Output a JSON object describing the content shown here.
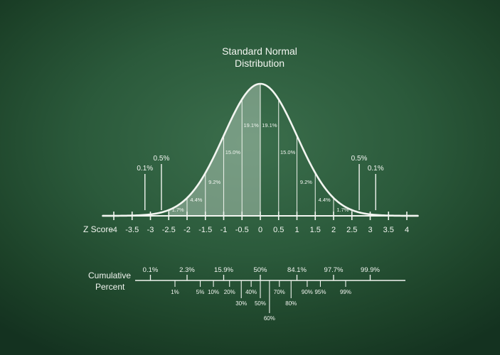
{
  "colors": {
    "background": "#2b5a3b",
    "chalk": "#f2f5f0",
    "shade_dark": "#7f9f89",
    "shade_light": "#a9c2b0"
  },
  "chart_data": {
    "type": "area",
    "title": "Standard Normal Distribution",
    "title_lines": [
      "Standard Normal",
      "Distribution"
    ],
    "xlabel": "Z Score",
    "xlim": [
      -4,
      4
    ],
    "x_ticks": [
      "-4",
      "-3.5",
      "-3",
      "-2.5",
      "-2",
      "-1.5",
      "-1",
      "-0.5",
      "0",
      "0.5",
      "1",
      "1.5",
      "2",
      "2.5",
      "3",
      "3.5",
      "4"
    ],
    "x_tick_values": [
      -4,
      -3.5,
      -3,
      -2.5,
      -2,
      -1.5,
      -1,
      -0.5,
      0,
      0.5,
      1,
      1.5,
      2,
      2.5,
      3,
      3.5,
      4
    ],
    "curve": "standard normal density",
    "segments": [
      {
        "from": -2.5,
        "to": -2,
        "label": "1.7%"
      },
      {
        "from": -2,
        "to": -1.5,
        "label": "4.4%"
      },
      {
        "from": -1.5,
        "to": -1,
        "label": "9.2%"
      },
      {
        "from": -1,
        "to": -0.5,
        "label": "15.0%"
      },
      {
        "from": -0.5,
        "to": 0,
        "label": "19.1%"
      },
      {
        "from": 0,
        "to": 0.5,
        "label": "19.1%"
      },
      {
        "from": 0.5,
        "to": 1,
        "label": "15.0%"
      },
      {
        "from": 1,
        "to": 1.5,
        "label": "9.2%"
      },
      {
        "from": 1.5,
        "to": 2,
        "label": "4.4%"
      },
      {
        "from": 2,
        "to": 2.5,
        "label": "1.7%"
      }
    ],
    "tail_labels": [
      {
        "x": -3.15,
        "label": "0.1%"
      },
      {
        "x": -2.7,
        "label": "0.5%"
      },
      {
        "x": 2.7,
        "label": "0.5%"
      },
      {
        "x": 3.15,
        "label": "0.1%"
      }
    ],
    "cumulative": {
      "label_lines": [
        "Cumulative",
        "Percent"
      ],
      "upper": [
        {
          "z": -3,
          "label": "0.1%"
        },
        {
          "z": -2,
          "label": "2.3%"
        },
        {
          "z": -1,
          "label": "15.9%"
        },
        {
          "z": 0,
          "label": "50%"
        },
        {
          "z": 1,
          "label": "84.1%"
        },
        {
          "z": 2,
          "label": "97.7%"
        },
        {
          "z": 3,
          "label": "99.9%"
        }
      ],
      "lower": [
        {
          "z": -2.33,
          "label": "1%",
          "row": 0
        },
        {
          "z": -1.64,
          "label": "5%",
          "row": 0
        },
        {
          "z": -1.28,
          "label": "10%",
          "row": 0
        },
        {
          "z": -0.84,
          "label": "20%",
          "row": 0
        },
        {
          "z": -0.52,
          "label": "30%",
          "row": 1
        },
        {
          "z": -0.25,
          "label": "40%",
          "row": 0
        },
        {
          "z": 0,
          "label": "50%",
          "row": 1
        },
        {
          "z": 0.25,
          "label": "60%",
          "row": 2
        },
        {
          "z": 0.52,
          "label": "70%",
          "row": 0
        },
        {
          "z": 0.84,
          "label": "80%",
          "row": 1
        },
        {
          "z": 1.28,
          "label": "90%",
          "row": 0
        },
        {
          "z": 1.64,
          "label": "95%",
          "row": 0
        },
        {
          "z": 2.33,
          "label": "99%",
          "row": 0
        }
      ]
    }
  }
}
